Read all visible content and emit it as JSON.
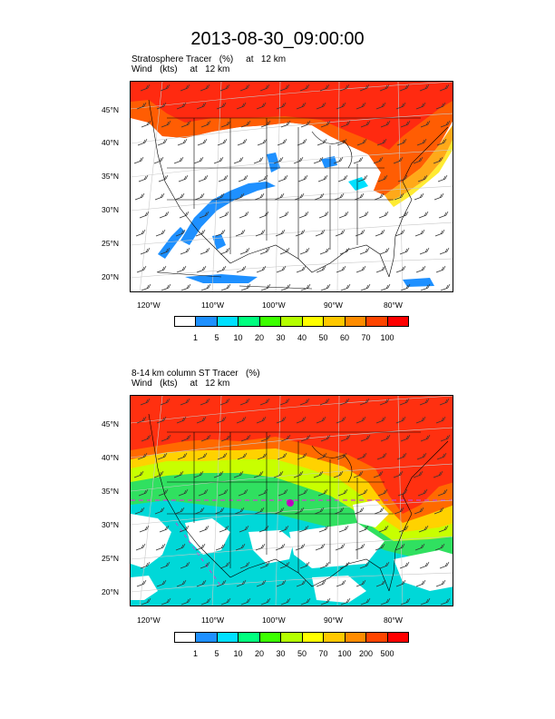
{
  "title": "2013-08-30_09:00:00",
  "panel1": {
    "line1": "Stratosphere Tracer   (%)     at   12 km",
    "line2": "Wind   (kts)     at   12 km",
    "lat_labels": [
      "45°N",
      "40°N",
      "35°N",
      "30°N",
      "25°N",
      "20°N"
    ],
    "lon_labels": [
      "120°W",
      "110°W",
      "100°W",
      "90°W",
      "80°W"
    ],
    "colorbar_labels": [
      "1",
      "5",
      "10",
      "20",
      "30",
      "40",
      "50",
      "60",
      "70",
      "100"
    ]
  },
  "panel2": {
    "line1": "8-14 km column ST Tracer   (%)",
    "line2": "Wind   (kts)     at   12 km",
    "lat_labels": [
      "45°N",
      "40°N",
      "35°N",
      "30°N",
      "25°N",
      "20°N"
    ],
    "lon_labels": [
      "120°W",
      "110°W",
      "100°W",
      "90°W",
      "80°W"
    ],
    "colorbar_labels": [
      "1",
      "5",
      "10",
      "20",
      "30",
      "50",
      "70",
      "100",
      "200",
      "500"
    ]
  },
  "colorbar_colors": [
    "#ffffff",
    "#1e90ff",
    "#00e0ff",
    "#00ff7f",
    "#3cff00",
    "#b4ff00",
    "#ffff00",
    "#ffc800",
    "#ff8c00",
    "#ff4500",
    "#ff0000"
  ]
}
